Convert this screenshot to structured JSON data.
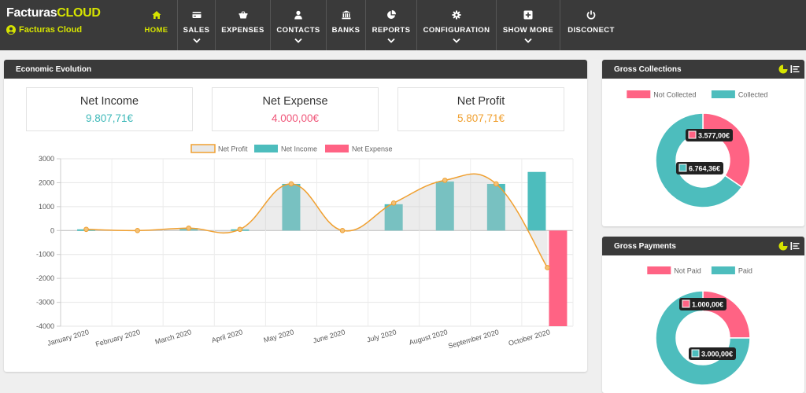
{
  "brand": {
    "name_part1": "Facturas",
    "name_part2": "CLOUD",
    "account": "Facturas Cloud",
    "account_icon": "user-circle-icon"
  },
  "nav": [
    {
      "label": "HOME",
      "icon": "home-icon",
      "active": true,
      "dropdown": false
    },
    {
      "label": "SALES",
      "icon": "card-icon",
      "active": false,
      "dropdown": true
    },
    {
      "label": "EXPENSES",
      "icon": "basket-icon",
      "active": false,
      "dropdown": false
    },
    {
      "label": "CONTACTS",
      "icon": "user-icon",
      "active": false,
      "dropdown": true
    },
    {
      "label": "BANKS",
      "icon": "bank-icon",
      "active": false,
      "dropdown": false
    },
    {
      "label": "REPORTS",
      "icon": "pie-icon",
      "active": false,
      "dropdown": true
    },
    {
      "label": "CONFIGURATION",
      "icon": "gear-icon",
      "active": false,
      "dropdown": true
    },
    {
      "label": "SHOW MORE",
      "icon": "plus-square-icon",
      "active": false,
      "dropdown": true
    },
    {
      "label": "DISCONECT",
      "icon": "power-icon",
      "active": false,
      "dropdown": false
    }
  ],
  "economic": {
    "title": "Economic Evolution",
    "kpis": [
      {
        "title": "Net Income",
        "value": "9.807,71€",
        "color": "#3fb9b9"
      },
      {
        "title": "Net Expense",
        "value": "4.000,00€",
        "color": "#f0577a"
      },
      {
        "title": "Net Profit",
        "value": "5.807,71€",
        "color": "#f0a030"
      }
    ]
  },
  "chart_data": {
    "type": "bar",
    "categories": [
      "January 2020",
      "February 2020",
      "March 2020",
      "April 2020",
      "May 2020",
      "June 2020",
      "July 2020",
      "August 2020",
      "September 2020",
      "October 2020"
    ],
    "series": [
      {
        "name": "Net Profit",
        "type": "line",
        "color": "#f0a030",
        "values": [
          50,
          0,
          100,
          50,
          1950,
          0,
          1150,
          2100,
          1950,
          -1550
        ]
      },
      {
        "name": "Net Income",
        "type": "bar",
        "color": "#4dbdbd",
        "values": [
          50,
          0,
          100,
          50,
          1950,
          0,
          1100,
          2050,
          1950,
          2450
        ]
      },
      {
        "name": "Net Expense",
        "type": "bar",
        "color": "#ff6384",
        "values": [
          0,
          0,
          0,
          0,
          0,
          0,
          0,
          0,
          0,
          -4000
        ]
      }
    ],
    "ylim": [
      -4000,
      3000
    ],
    "yticks": [
      "3000",
      "2000",
      "1000",
      "0",
      "-1000",
      "-2000",
      "-3000",
      "-4000"
    ],
    "grid": true,
    "legend": "top-center"
  },
  "gross_collections": {
    "title": "Gross Collections",
    "legend": [
      {
        "label": "Not Collected",
        "color": "#ff6384"
      },
      {
        "label": "Collected",
        "color": "#4dbdbd"
      }
    ],
    "slices": [
      {
        "label": "Not Collected",
        "value": 3577.0,
        "display": "3.577,00€",
        "color": "#ff6384"
      },
      {
        "label": "Collected",
        "value": 6764.36,
        "display": "6.764,36€",
        "color": "#4dbdbd"
      }
    ],
    "tools": [
      "pie-chart-icon",
      "list-icon"
    ]
  },
  "gross_payments": {
    "title": "Gross Payments",
    "legend": [
      {
        "label": "Not Paid",
        "color": "#ff6384"
      },
      {
        "label": "Paid",
        "color": "#4dbdbd"
      }
    ],
    "slices": [
      {
        "label": "Not Paid",
        "value": 1000.0,
        "display": "1.000,00€",
        "color": "#ff6384"
      },
      {
        "label": "Paid",
        "value": 3000.0,
        "display": "3.000,00€",
        "color": "#4dbdbd"
      }
    ],
    "tools": [
      "pie-chart-icon",
      "list-icon"
    ]
  }
}
